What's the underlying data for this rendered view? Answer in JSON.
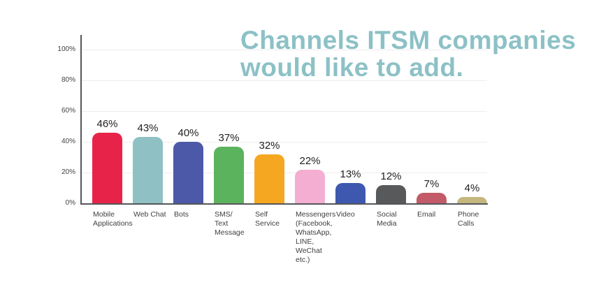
{
  "title": {
    "lines": [
      "Channels ITSM companies",
      "would like to add."
    ],
    "color": "#8cc1c6"
  },
  "chart_data": {
    "type": "bar",
    "title": "Channels ITSM companies would like to add.",
    "categories": [
      "Mobile Applications",
      "Web Chat",
      "Bots",
      "SMS/Text Message",
      "Self Service",
      "Messengers (Facebook, WhatsApp, LINE, WeChat etc.)",
      "Video",
      "Social Media",
      "Email",
      "Phone Calls"
    ],
    "category_display": [
      "Mobile\nApplications",
      "Web Chat",
      "Bots",
      "SMS/\nText\nMessage",
      "Self\nService",
      "Messengers\n(Facebook,\nWhatsApp,\nLINE,\nWeChat\netc.)",
      "Video",
      "Social\nMedia",
      "Email",
      "Phone\nCalls"
    ],
    "values": [
      46,
      43,
      40,
      37,
      32,
      22,
      13,
      12,
      7,
      4
    ],
    "value_labels": [
      "46%",
      "43%",
      "40%",
      "37%",
      "32%",
      "22%",
      "13%",
      "12%",
      "7%",
      "4%"
    ],
    "bar_colors": [
      "#e8234a",
      "#8fc0c3",
      "#4c59a9",
      "#5cb35e",
      "#f5a722",
      "#f4aed2",
      "#3d58ae",
      "#58595b",
      "#c25a67",
      "#c4b77e"
    ],
    "xlabel": "",
    "ylabel": "",
    "ylim": [
      0,
      100
    ],
    "y_tick_labels": [
      "0%",
      "20%",
      "40%",
      "60%",
      "80%",
      "100%"
    ],
    "y_tick_values": [
      0,
      20,
      40,
      60,
      80,
      100
    ],
    "grid": true,
    "legend": false,
    "axis_color": "#55565a",
    "grid_color": "#ededed",
    "tick_label_color": "#404042",
    "value_label_color": "#1f1f1f",
    "category_label_color": "#404042"
  }
}
